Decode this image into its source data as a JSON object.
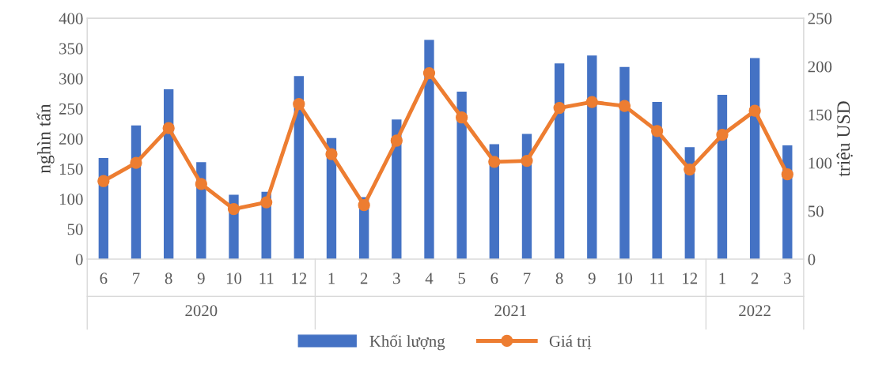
{
  "chart_data": {
    "type": "bar",
    "ylabel": "nghìn tấn",
    "y2label": "triệu USD",
    "categories": [
      "6",
      "7",
      "8",
      "9",
      "10",
      "11",
      "12",
      "1",
      "2",
      "3",
      "4",
      "5",
      "6",
      "7",
      "8",
      "9",
      "10",
      "11",
      "12",
      "1",
      "2",
      "3"
    ],
    "series": [
      {
        "name": "Khối lượng",
        "color": "#4472c4",
        "values": [
          168,
          222,
          282,
          161,
          107,
          112,
          304,
          201,
          103,
          232,
          364,
          278,
          191,
          208,
          325,
          338,
          319,
          261,
          186,
          273,
          334,
          189
        ]
      },
      {
        "name": "Giá trị",
        "type": "line",
        "axis": "y2",
        "color": "#ed7d31",
        "marker": "circle",
        "values": [
          81,
          100,
          136,
          78,
          52,
          59,
          161,
          109,
          56,
          123,
          193,
          147,
          101,
          102,
          157,
          163,
          159,
          133,
          93,
          129,
          154,
          88
        ]
      }
    ],
    "ylim": [
      0,
      400
    ],
    "yticks": [
      0,
      50,
      100,
      150,
      200,
      250,
      300,
      350,
      400
    ],
    "y2lim": [
      0,
      250
    ],
    "y2ticks": [
      0,
      50,
      100,
      150,
      200,
      250
    ],
    "annotations": [
      "2020",
      "2021",
      "2022"
    ],
    "legend": "bottom",
    "grid": false
  }
}
